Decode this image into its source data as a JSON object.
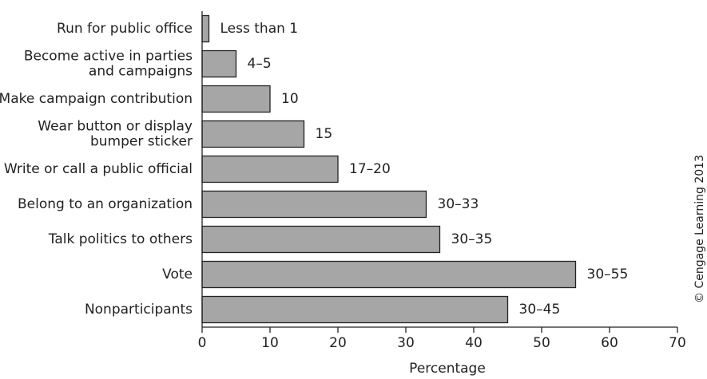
{
  "chart_data": {
    "type": "hbar",
    "categories": [
      [
        "Run for public office"
      ],
      [
        "Become active in parties",
        "and campaigns"
      ],
      [
        "Make campaign contribution"
      ],
      [
        "Wear button or display",
        "bumper sticker"
      ],
      [
        "Write or call a public official"
      ],
      [
        "Belong to an organization"
      ],
      [
        "Talk politics to others"
      ],
      [
        "Vote"
      ],
      [
        "Nonparticipants"
      ]
    ],
    "values": [
      1,
      5,
      10,
      15,
      20,
      33,
      35,
      55,
      45
    ],
    "value_labels": [
      "Less than 1",
      "4–5",
      "10",
      "15",
      "17–20",
      "30–33",
      "30–35",
      "30–55",
      "30–45"
    ],
    "color": "#a6a6a6",
    "xlabel": "Percentage",
    "xlim": [
      0,
      70
    ],
    "xticks": [
      0,
      10,
      20,
      30,
      40,
      50,
      60,
      70
    ],
    "grid": false,
    "source": "© Cengage Learning 2013"
  }
}
